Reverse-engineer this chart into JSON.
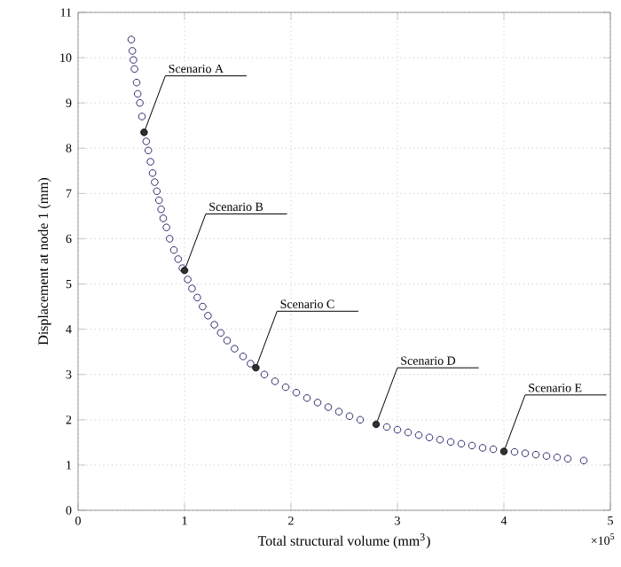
{
  "chart_data": {
    "type": "scatter",
    "xlabel": "Total structural volume (mm$^{3}$)",
    "ylabel": "Displacement at node 1 (mm)",
    "xlim": [
      0,
      5
    ],
    "xticks": [
      0,
      1,
      2,
      3,
      4,
      5
    ],
    "ylim": [
      0,
      11
    ],
    "yticks": [
      0,
      1,
      2,
      3,
      4,
      5,
      6,
      7,
      8,
      9,
      10,
      11
    ],
    "grid": true,
    "marker": "circle",
    "series": [
      {
        "color": "#2b2b6b",
        "x": [
          0.5,
          0.51,
          0.52,
          0.53,
          0.55,
          0.56,
          0.58,
          0.6,
          0.64,
          0.66,
          0.68,
          0.7,
          0.72,
          0.74,
          0.76,
          0.78,
          0.8,
          0.83,
          0.86,
          0.9,
          0.94,
          0.98,
          1.03,
          1.07,
          1.12,
          1.17,
          1.22,
          1.28,
          1.34,
          1.4,
          1.47,
          1.55,
          1.62,
          1.75,
          1.85,
          1.95,
          2.05,
          2.15,
          2.25,
          2.35,
          2.45,
          2.55,
          2.65,
          2.9,
          3.0,
          3.1,
          3.2,
          3.3,
          3.4,
          3.5,
          3.6,
          3.7,
          3.8,
          3.9,
          4.1,
          4.2,
          4.3,
          4.4,
          4.5,
          4.6,
          4.75
        ],
        "values": [
          10.4,
          10.15,
          9.95,
          9.75,
          9.45,
          9.2,
          9.0,
          8.7,
          8.15,
          7.95,
          7.7,
          7.45,
          7.25,
          7.05,
          6.85,
          6.65,
          6.45,
          6.25,
          6.0,
          5.75,
          5.55,
          5.35,
          5.1,
          4.9,
          4.7,
          4.5,
          4.3,
          4.1,
          3.92,
          3.75,
          3.57,
          3.4,
          3.24,
          3.0,
          2.85,
          2.72,
          2.6,
          2.48,
          2.38,
          2.28,
          2.18,
          2.08,
          2.0,
          1.84,
          1.78,
          1.72,
          1.66,
          1.61,
          1.56,
          1.51,
          1.47,
          1.43,
          1.38,
          1.35,
          1.29,
          1.26,
          1.23,
          1.2,
          1.17,
          1.14,
          1.1
        ]
      },
      {
        "color": "#303030",
        "marker": "circle",
        "x": [
          0.62,
          1.0,
          1.67,
          2.8,
          4.0
        ],
        "values": [
          8.35,
          5.3,
          3.15,
          1.9,
          1.3
        ]
      }
    ],
    "annotations": [
      {
        "text": "Scenario A",
        "x": 0.62,
        "y": 8.35
      },
      {
        "text": "Scenario B",
        "x": 1.0,
        "y": 5.3
      },
      {
        "text": "Scenario C",
        "x": 1.67,
        "y": 3.15
      },
      {
        "text": "Scenario D",
        "x": 2.8,
        "y": 1.9
      },
      {
        "text": "Scenario E",
        "x": 4.0,
        "y": 1.3
      },
      "×10$^{5}$"
    ]
  }
}
